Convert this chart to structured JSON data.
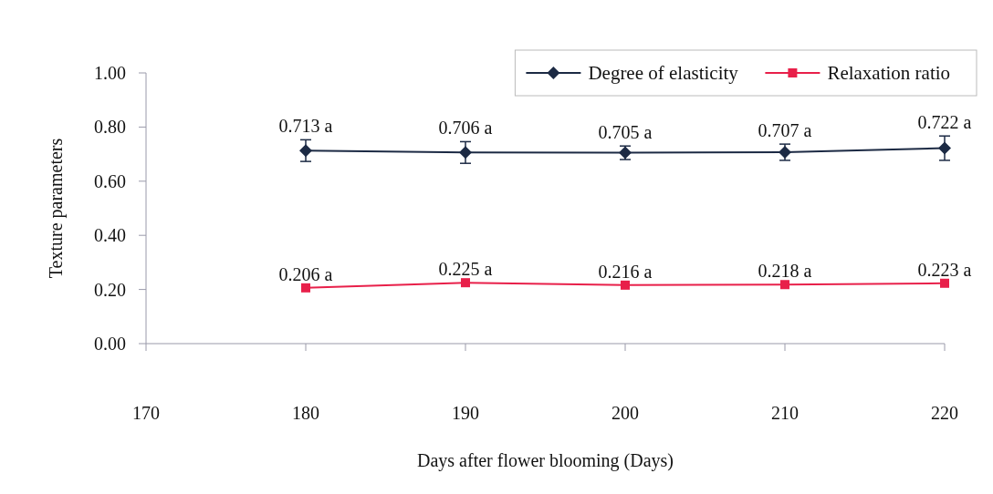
{
  "chart_data": {
    "type": "line",
    "xlabel": "Days after flower blooming (Days)",
    "ylabel": "Texture parameters",
    "x": [
      180,
      190,
      200,
      210,
      220
    ],
    "xlim": [
      170,
      220
    ],
    "xticks": [
      170,
      180,
      190,
      200,
      210,
      220
    ],
    "ylim": [
      0,
      1
    ],
    "yticks": [
      {
        "value": 0,
        "label": "0.00"
      },
      {
        "value": 0.2,
        "label": "0.20"
      },
      {
        "value": 0.4,
        "label": "0.40"
      },
      {
        "value": 0.6,
        "label": "0.60"
      },
      {
        "value": 0.8,
        "label": "0.80"
      },
      {
        "value": 1,
        "label": "1.00"
      }
    ],
    "grid": false,
    "legend": "top right",
    "series": [
      {
        "name": "Degree of elasticity",
        "color": "#1c2a44",
        "marker": "diamond",
        "values": [
          0.713,
          0.706,
          0.705,
          0.707,
          0.722
        ],
        "errors": [
          0.04,
          0.04,
          0.025,
          0.03,
          0.045
        ],
        "value_labels": [
          "0.713 a",
          "0.706 a",
          "0.705 a",
          "0.707 a",
          "0.722 a"
        ]
      },
      {
        "name": "Relaxation ratio",
        "color": "#e8204a",
        "marker": "square",
        "values": [
          0.206,
          0.225,
          0.216,
          0.218,
          0.223
        ],
        "value_labels": [
          "0.206 a",
          "0.225 a",
          "0.216 a",
          "0.218 a",
          "0.223 a"
        ]
      }
    ]
  }
}
